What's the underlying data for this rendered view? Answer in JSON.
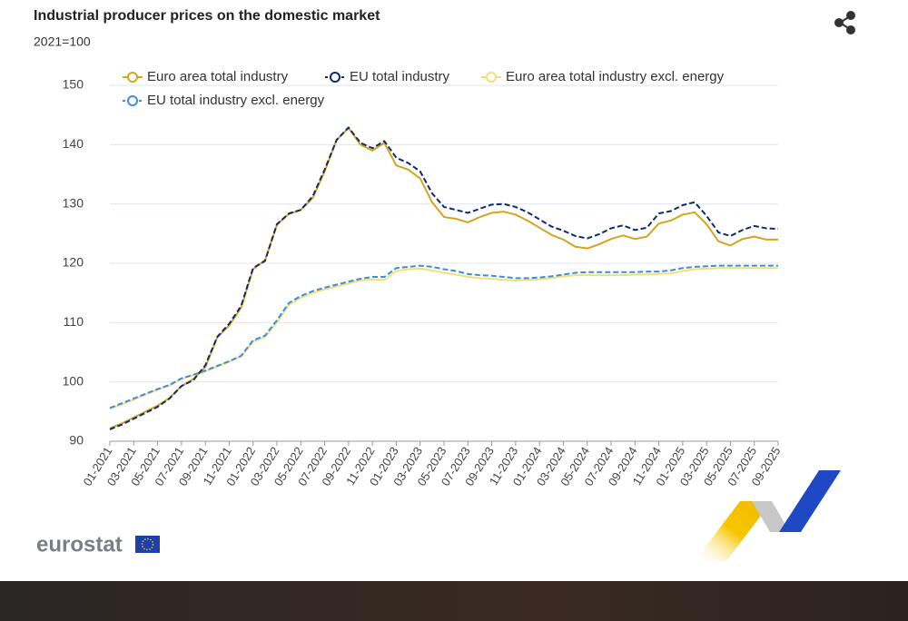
{
  "chart_data": {
    "type": "line",
    "title": "Industrial producer prices on the domestic market",
    "subtitle": "2021=100",
    "categories": [
      "01-2021",
      null,
      "03-2021",
      null,
      "05-2021",
      null,
      "07-2021",
      null,
      "09-2021",
      null,
      "11-2021",
      null,
      "01-2022",
      null,
      "03-2022",
      null,
      "05-2022",
      null,
      "07-2022",
      null,
      "09-2022",
      null,
      "11-2022",
      null,
      "01-2023",
      null,
      "03-2023",
      null,
      "05-2023",
      null,
      "07-2023",
      null,
      "09-2023",
      null,
      "11-2023",
      null,
      "01-2024",
      null,
      "03-2024",
      null,
      "05-2024",
      null,
      "07-2024",
      null,
      "09-2024",
      null,
      "11-2024",
      null,
      "01-2025",
      null,
      "03-2025",
      null,
      "05-2025",
      null,
      "07-2025",
      null,
      "09-2025"
    ],
    "series": [
      {
        "name": "Euro area total industry",
        "color": "#d4a51c",
        "dashed": false,
        "values": [
          92.2,
          93,
          94,
          95,
          96,
          97.3,
          99.3,
          100.5,
          102.5,
          107.5,
          109.5,
          112.5,
          119,
          120.5,
          126.5,
          128.3,
          129,
          131,
          135.5,
          140.8,
          142.8,
          140,
          139,
          140.3,
          136.5,
          135.8,
          134.3,
          130.3,
          127.8,
          127.5,
          126.9,
          127.8,
          128.5,
          128.7,
          128.2,
          127.2,
          126,
          124.8,
          124,
          122.8,
          122.5,
          123.2,
          124.1,
          124.7,
          124.1,
          124.5,
          126.7,
          127.2,
          128.2,
          128.6,
          126.6,
          123.7,
          123,
          124.1,
          124.5,
          124,
          124
        ]
      },
      {
        "name": "EU total industry",
        "color": "#0f2b6e",
        "dashed": true,
        "values": [
          92,
          92.8,
          93.8,
          94.8,
          95.8,
          97.2,
          99.3,
          100.3,
          102.8,
          107.6,
          109.8,
          112.8,
          119.2,
          120.4,
          126.6,
          128.4,
          129,
          131.3,
          135.8,
          140.8,
          142.9,
          140.3,
          139.4,
          140.6,
          137.8,
          136.9,
          135.5,
          131.8,
          129.5,
          129,
          128.5,
          129.2,
          129.9,
          130,
          129.5,
          128.6,
          127.4,
          126.2,
          125.5,
          124.6,
          124.2,
          124.9,
          125.9,
          126.4,
          125.6,
          126,
          128.4,
          128.8,
          129.8,
          130.3,
          128,
          125.2,
          124.6,
          125.6,
          126.3,
          125.9,
          125.8
        ]
      },
      {
        "name": "Euro area total industry excl. energy",
        "color": "#f3df78",
        "dashed": false,
        "values": [
          95.5,
          96.2,
          97,
          97.9,
          98.7,
          99.4,
          100.5,
          101.2,
          101.8,
          102.6,
          103.4,
          104.3,
          106.8,
          107.6,
          110,
          113,
          114.2,
          115,
          115.6,
          116.1,
          116.6,
          117.1,
          117.3,
          117.2,
          118.7,
          119,
          119.1,
          118.8,
          118.4,
          118.1,
          117.7,
          117.5,
          117.4,
          117.2,
          117.1,
          117.2,
          117.3,
          117.5,
          117.8,
          118,
          118,
          118,
          118,
          118,
          118.1,
          118.1,
          118.2,
          118.3,
          118.7,
          119,
          119.1,
          119.2,
          119.2,
          119.2,
          119.2,
          119.2,
          119.2
        ]
      },
      {
        "name": "EU total industry excl. energy",
        "color": "#3a8de0",
        "dashed": true,
        "values": [
          95.6,
          96.4,
          97.2,
          98,
          98.8,
          99.5,
          100.6,
          101.2,
          101.9,
          102.7,
          103.5,
          104.4,
          107,
          107.8,
          110.4,
          113.3,
          114.5,
          115.3,
          115.9,
          116.4,
          116.9,
          117.4,
          117.7,
          117.7,
          119.2,
          119.4,
          119.6,
          119.4,
          119,
          118.7,
          118.2,
          118,
          117.9,
          117.7,
          117.5,
          117.5,
          117.6,
          117.8,
          118.1,
          118.4,
          118.5,
          118.5,
          118.5,
          118.5,
          118.5,
          118.6,
          118.6,
          118.8,
          119.2,
          119.4,
          119.5,
          119.6,
          119.6,
          119.6,
          119.6,
          119.6,
          119.6
        ]
      }
    ],
    "ylim": [
      90,
      150
    ],
    "yticks": [
      90,
      100,
      110,
      120,
      130,
      140,
      150
    ],
    "grid": true
  },
  "branding": {
    "logo": "eurostat"
  }
}
